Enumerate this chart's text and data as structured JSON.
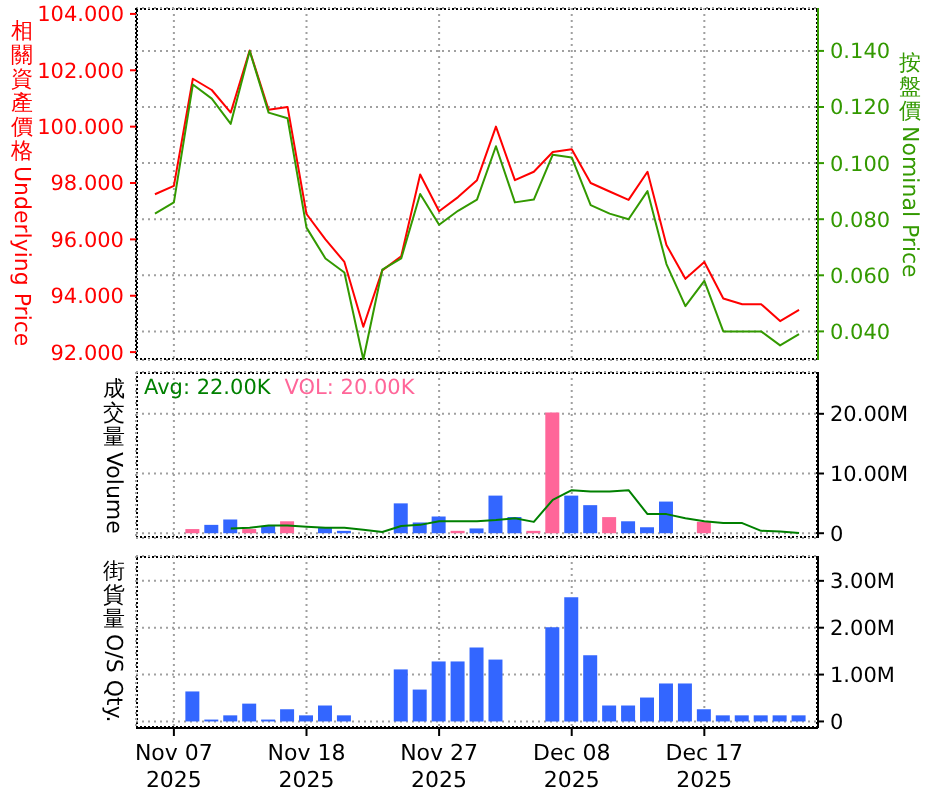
{
  "chart_data": [
    {
      "type": "line",
      "categories": [
        null,
        null,
        null,
        null,
        null,
        null,
        null,
        null,
        null,
        null,
        null,
        null,
        null,
        null,
        null,
        null,
        null,
        null,
        null,
        null,
        null,
        null,
        null,
        null,
        null,
        null,
        null,
        null,
        null,
        null,
        null,
        null,
        null,
        null,
        null
      ],
      "ylabel": "相關資產價格Underlying Price",
      "y2label": "按盤價Nominal Price",
      "ylim": [
        91.72,
        104.21
      ],
      "yticks": [
        {
          "value": 92,
          "label": "92.000"
        },
        {
          "value": 94,
          "label": "94.000"
        },
        {
          "value": 96,
          "label": "96.000"
        },
        {
          "value": 98,
          "label": "98.000"
        },
        {
          "value": 100,
          "label": "100.000"
        },
        {
          "value": 102,
          "label": "102.000"
        },
        {
          "value": 104,
          "label": "104.000"
        }
      ],
      "y2lim": [
        0.0298,
        0.1553
      ],
      "y2ticks": [
        {
          "value": 0.04,
          "label": "0.040"
        },
        {
          "value": 0.06,
          "label": "0.060"
        },
        {
          "value": 0.08,
          "label": "0.080"
        },
        {
          "value": 0.1,
          "label": "0.100"
        },
        {
          "value": 0.12,
          "label": "0.120"
        },
        {
          "value": 0.14,
          "label": "0.140"
        }
      ],
      "series": [
        {
          "color": "#ff0000",
          "values": [
            97.6,
            97.9,
            101.7,
            101.3,
            100.5,
            102.7,
            100.6,
            100.7,
            96.9,
            96.0,
            95.2,
            92.9,
            94.9,
            95.4,
            98.3,
            97.0,
            97.5,
            98.1,
            100.0,
            98.1,
            98.4,
            99.1,
            99.2,
            98.0,
            97.7,
            97.4,
            98.4,
            95.8,
            94.6,
            95.2,
            93.9,
            93.7,
            93.7,
            93.1,
            93.5
          ]
        },
        {
          "color": "#339900",
          "axis": "y2",
          "values": [
            0.082,
            0.086,
            0.128,
            0.123,
            0.114,
            0.14,
            0.118,
            0.116,
            0.077,
            0.066,
            0.061,
            0.03,
            0.062,
            0.066,
            0.089,
            0.078,
            0.083,
            0.087,
            0.106,
            0.086,
            0.087,
            0.103,
            0.102,
            0.085,
            0.082,
            0.08,
            0.09,
            0.064,
            0.049,
            0.058,
            0.04,
            0.04,
            0.04,
            0.035,
            0.039
          ]
        }
      ],
      "grid": true,
      "tick_labels": "y"
    },
    {
      "type": "bar",
      "categories": [
        null,
        null,
        null,
        null,
        null,
        null,
        null,
        null,
        null,
        null,
        null,
        null,
        null,
        null,
        null,
        null,
        null,
        null,
        null,
        null,
        null,
        null,
        null,
        null,
        null,
        null,
        null,
        null,
        null,
        null,
        null,
        null,
        null,
        null,
        null
      ],
      "ylabel": "成交量Volume",
      "ylim": [
        -800000,
        27000000
      ],
      "yticks": [
        0,
        {
          "value": 10000000,
          "label": "10.00M"
        },
        {
          "value": 20000000,
          "label": "20.00M"
        }
      ],
      "series": [
        {
          "name": "Avg: 22.00K",
          "type": "line",
          "color": "#008000",
          "values": [
            null,
            null,
            null,
            null,
            800000,
            900000,
            1300000,
            1300000,
            1100000,
            900000,
            900000,
            600000,
            200000,
            1200000,
            1400000,
            2000000,
            2000000,
            2000000,
            2200000,
            2500000,
            1900000,
            5600000,
            7200000,
            7000000,
            7000000,
            7200000,
            3200000,
            3200000,
            2500000,
            2000000,
            1700000,
            1700000,
            400000,
            300000,
            22000
          ]
        },
        {
          "color": "#3366ff",
          "values": [
            null,
            null,
            null,
            1400000,
            2300000,
            null,
            1200000,
            null,
            null,
            1000000,
            400000,
            null,
            null,
            5000000,
            1800000,
            2800000,
            null,
            800000,
            6300000,
            2700000,
            null,
            null,
            6300000,
            4700000,
            null,
            2000000,
            1000000,
            5300000,
            null,
            null,
            null,
            null,
            null,
            null,
            null
          ]
        },
        {
          "name": "VOL: 20.00K",
          "color": "#ff6699",
          "values": [
            null,
            null,
            700000,
            null,
            null,
            700000,
            null,
            2000000,
            null,
            null,
            null,
            null,
            null,
            null,
            null,
            null,
            400000,
            null,
            null,
            null,
            400000,
            20200000,
            null,
            null,
            2700000,
            null,
            null,
            null,
            null,
            1900000,
            null,
            null,
            null,
            null,
            null
          ]
        }
      ],
      "legend": "top left",
      "grid": true,
      "tick_labels": "y"
    },
    {
      "type": "bar",
      "categories": [
        null,
        "Nov 07\n2025",
        null,
        null,
        null,
        null,
        null,
        null,
        "Nov 18\n2025",
        null,
        null,
        null,
        null,
        null,
        null,
        "Nov 27\n2025",
        null,
        null,
        null,
        null,
        null,
        null,
        "Dec 08\n2025",
        null,
        null,
        null,
        null,
        null,
        null,
        "Dec 17\n2025",
        null,
        null,
        null,
        null,
        null
      ],
      "ylabel": "街貨量O/S Qty.",
      "ylim": [
        -140000,
        3530000
      ],
      "yticks": [
        0,
        {
          "value": 1000000,
          "label": "1.00M"
        },
        {
          "value": 2000000,
          "label": "2.00M"
        },
        {
          "value": 3000000,
          "label": "3.00M"
        }
      ],
      "series": [
        {
          "color": "#3366ff",
          "values": [
            null,
            null,
            640000,
            40000,
            130000,
            380000,
            40000,
            260000,
            130000,
            340000,
            130000,
            null,
            null,
            1110000,
            680000,
            1280000,
            1280000,
            1580000,
            1320000,
            null,
            null,
            2010000,
            2650000,
            1410000,
            340000,
            340000,
            510000,
            810000,
            810000,
            260000,
            130000,
            130000,
            130000,
            130000,
            130000
          ]
        }
      ],
      "grid": true
    }
  ]
}
